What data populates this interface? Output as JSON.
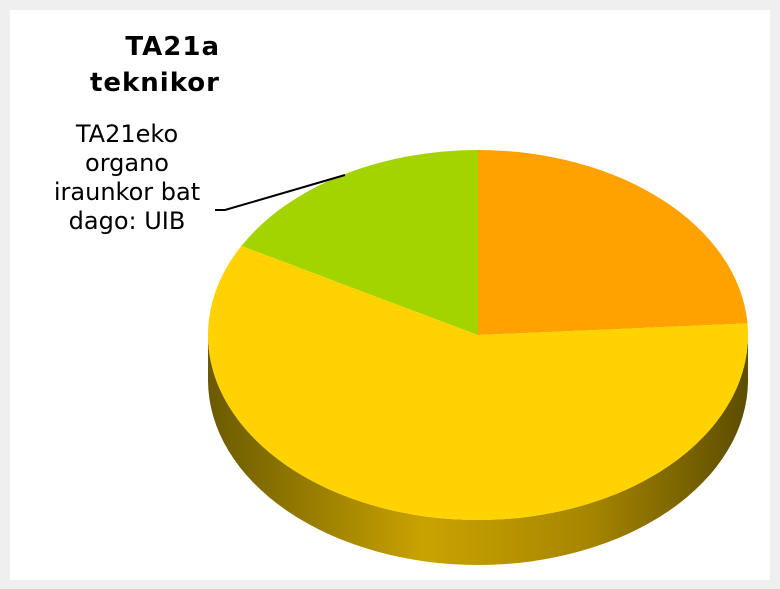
{
  "chart_data": {
    "type": "pie",
    "title_lines": [
      "TA21a",
      "teknikor"
    ],
    "categories": [
      null,
      null,
      "TA21eko organo iraunkor bat dago: UIB"
    ],
    "values": [
      24,
      59,
      17
    ],
    "colors": [
      "#ffa200",
      "#ffd200",
      "#a3d400"
    ]
  }
}
